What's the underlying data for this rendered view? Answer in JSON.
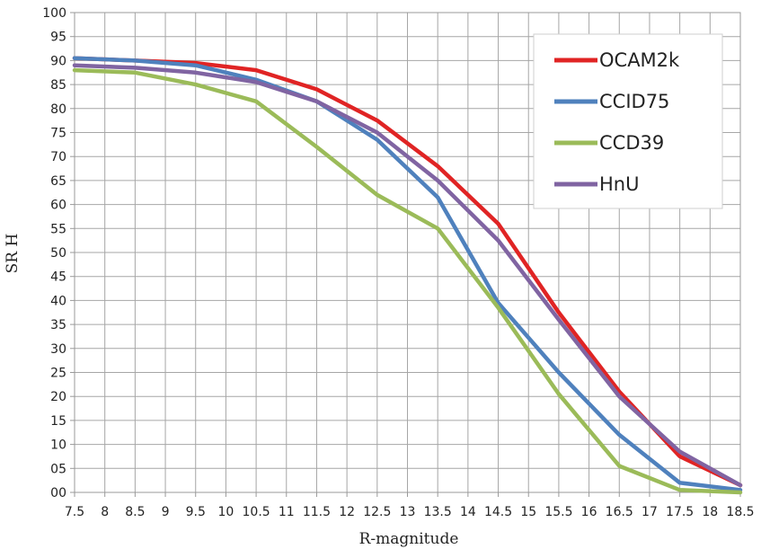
{
  "chart_data": {
    "type": "line",
    "xlabel": "R-magnitude",
    "ylabel": "SR H",
    "x": [
      7.5,
      8.5,
      9.5,
      10.5,
      11.5,
      12.5,
      13.5,
      14.5,
      15.5,
      16.5,
      17.5,
      18.5
    ],
    "xlim": [
      7.5,
      18.5
    ],
    "ylim": [
      0,
      100
    ],
    "x_ticks": [
      "7.5",
      "8",
      "8.5",
      "9",
      "9.5",
      "10",
      "10.5",
      "11",
      "11.5",
      "12",
      "12.5",
      "13",
      "13.5",
      "14",
      "14.5",
      "15",
      "15.5",
      "16",
      "16.5",
      "17",
      "17.5",
      "18",
      "18.5"
    ],
    "y_ticks": [
      "00",
      "05",
      "10",
      "15",
      "20",
      "25",
      "30",
      "35",
      "40",
      "45",
      "50",
      "55",
      "60",
      "65",
      "70",
      "75",
      "80",
      "85",
      "90",
      "95",
      "100"
    ],
    "grid": true,
    "legend_position": "top-right",
    "series": [
      {
        "name": "OCAM2k",
        "color": "#e02424",
        "values": [
          90.5,
          90.0,
          89.5,
          88.0,
          84.0,
          77.5,
          68.0,
          56.0,
          37.5,
          21.0,
          7.5,
          1.5
        ]
      },
      {
        "name": "CCID75",
        "color": "#4f81bd",
        "values": [
          90.5,
          90.0,
          89.0,
          86.0,
          81.5,
          73.5,
          61.5,
          39.5,
          25.0,
          12.0,
          2.0,
          0.5
        ]
      },
      {
        "name": "CCD39",
        "color": "#9bbb59",
        "values": [
          88.0,
          87.5,
          85.0,
          81.5,
          72.0,
          62.0,
          55.0,
          38.5,
          20.5,
          5.5,
          0.5,
          0.0
        ]
      },
      {
        "name": "HnU",
        "color": "#8064a2",
        "values": [
          89.0,
          88.5,
          87.5,
          85.5,
          81.5,
          75.0,
          65.0,
          52.5,
          36.0,
          20.0,
          8.5,
          1.5
        ]
      }
    ]
  }
}
